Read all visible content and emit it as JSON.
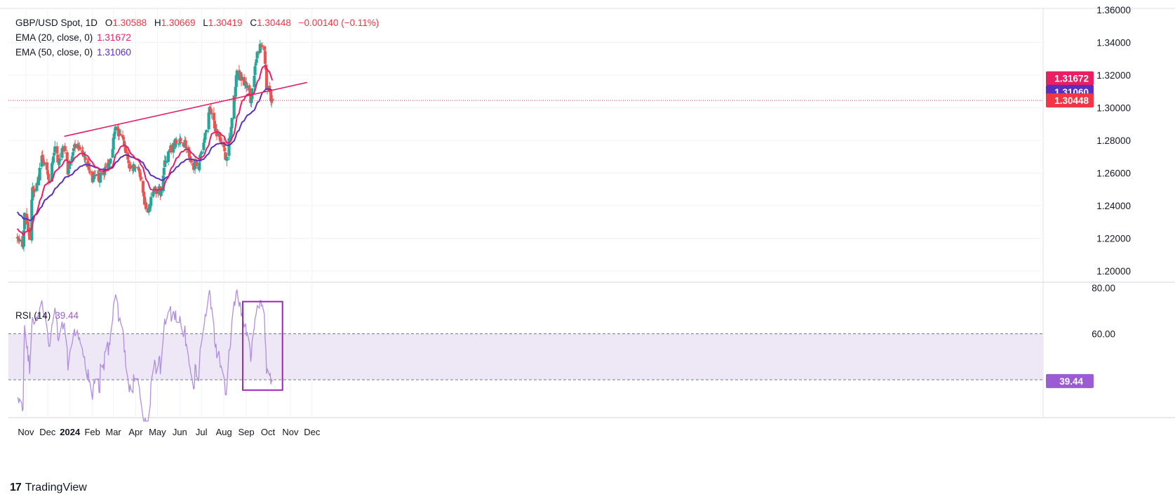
{
  "legend": {
    "symbol": "GBP/USD Spot, 1D",
    "o_label": "O",
    "o_val": "1.30588",
    "h_label": "H",
    "h_val": "1.30669",
    "l_label": "L",
    "l_val": "1.30419",
    "c_label": "C",
    "c_val": "1.30448",
    "change": "−0.00140 (−0.11%)",
    "ema20_label": "EMA (20, close, 0)",
    "ema20_val": "1.31672",
    "ema50_label": "EMA (50, close, 0)",
    "ema50_val": "1.31060",
    "rsi_label": "RSI (14)",
    "rsi_val": "39.44"
  },
  "brand": {
    "logo": "17",
    "name": "TradingView"
  },
  "colors": {
    "up": "#26a69a",
    "down": "#ef5350",
    "ema20": "#e91e63",
    "ema50": "#5b2ec0",
    "rsi": "#b28ee0",
    "rsi_band": "#ede7f6",
    "box": "#9c27b0",
    "trend": "#e91e63",
    "last": "#f23645"
  },
  "chart_data": [
    {
      "type": "candlestick",
      "title": "GBP/USD Spot, 1D",
      "y_ticks": [
        "1.36000",
        "1.34000",
        "1.32000",
        "1.30000",
        "1.28000",
        "1.26000",
        "1.24000",
        "1.22000",
        "1.20000"
      ],
      "ylim": [
        1.2,
        1.36
      ],
      "x_ticks": [
        "Nov",
        "Dec",
        "2024",
        "Feb",
        "Mar",
        "Apr",
        "May",
        "Jun",
        "Jul",
        "Aug",
        "Sep",
        "Oct",
        "Nov",
        "Dec"
      ],
      "price_labels": [
        {
          "name": "EMA 20",
          "value": "1.31672"
        },
        {
          "name": "EMA 50",
          "value": "1.31060"
        },
        {
          "name": "Close",
          "value": "1.30448"
        }
      ],
      "anchors": [
        {
          "date": "2023-10-24",
          "close": 1.221
        },
        {
          "date": "2023-11-01",
          "close": 1.214
        },
        {
          "date": "2023-11-03",
          "close": 1.238
        },
        {
          "date": "2023-11-10",
          "close": 1.222
        },
        {
          "date": "2023-11-14",
          "close": 1.25
        },
        {
          "date": "2023-11-21",
          "close": 1.254
        },
        {
          "date": "2023-11-28",
          "close": 1.27
        },
        {
          "date": "2023-12-05",
          "close": 1.257
        },
        {
          "date": "2023-12-08",
          "close": 1.254
        },
        {
          "date": "2023-12-14",
          "close": 1.275
        },
        {
          "date": "2023-12-20",
          "close": 1.268
        },
        {
          "date": "2023-12-28",
          "close": 1.278
        },
        {
          "date": "2024-01-02",
          "close": 1.262
        },
        {
          "date": "2024-01-12",
          "close": 1.276
        },
        {
          "date": "2024-01-25",
          "close": 1.271
        },
        {
          "date": "2024-02-05",
          "close": 1.256
        },
        {
          "date": "2024-02-15",
          "close": 1.257
        },
        {
          "date": "2024-02-28",
          "close": 1.266
        },
        {
          "date": "2024-03-08",
          "close": 1.287
        },
        {
          "date": "2024-03-20",
          "close": 1.278
        },
        {
          "date": "2024-03-28",
          "close": 1.262
        },
        {
          "date": "2024-04-08",
          "close": 1.265
        },
        {
          "date": "2024-04-15",
          "close": 1.245
        },
        {
          "date": "2024-04-22",
          "close": 1.235
        },
        {
          "date": "2024-04-30",
          "close": 1.25
        },
        {
          "date": "2024-05-09",
          "close": 1.249
        },
        {
          "date": "2024-05-16",
          "close": 1.268
        },
        {
          "date": "2024-05-28",
          "close": 1.278
        },
        {
          "date": "2024-06-12",
          "close": 1.279
        },
        {
          "date": "2024-06-20",
          "close": 1.265
        },
        {
          "date": "2024-07-01",
          "close": 1.265
        },
        {
          "date": "2024-07-10",
          "close": 1.285
        },
        {
          "date": "2024-07-17",
          "close": 1.3
        },
        {
          "date": "2024-07-25",
          "close": 1.286
        },
        {
          "date": "2024-08-02",
          "close": 1.281
        },
        {
          "date": "2024-08-07",
          "close": 1.269
        },
        {
          "date": "2024-08-14",
          "close": 1.283
        },
        {
          "date": "2024-08-23",
          "close": 1.322
        },
        {
          "date": "2024-08-28",
          "close": 1.318
        },
        {
          "date": "2024-09-06",
          "close": 1.313
        },
        {
          "date": "2024-09-11",
          "close": 1.305
        },
        {
          "date": "2024-09-20",
          "close": 1.332
        },
        {
          "date": "2024-09-25",
          "close": 1.338
        },
        {
          "date": "2024-09-30",
          "close": 1.338
        },
        {
          "date": "2024-10-03",
          "close": 1.312
        },
        {
          "date": "2024-10-07",
          "close": 1.309
        },
        {
          "date": "2024-10-11",
          "close": 1.3045
        }
      ],
      "ema20_last": 1.31672,
      "ema50_last": 1.3106,
      "last_close": 1.30448,
      "trendline": [
        {
          "date": "2023-12-28",
          "price": 1.2825
        },
        {
          "date": "2024-11-28",
          "price": 1.3155
        }
      ]
    },
    {
      "type": "line",
      "title": "RSI (14)",
      "y_ticks": [
        "80.00",
        "60.00"
      ],
      "ylim": [
        20,
        80
      ],
      "last_label": "39.44",
      "levels": [
        60,
        40
      ],
      "highlight": {
        "from": "2024-08-31",
        "to": "2024-10-25",
        "ymin": 35.5,
        "ymax": 74
      }
    }
  ]
}
